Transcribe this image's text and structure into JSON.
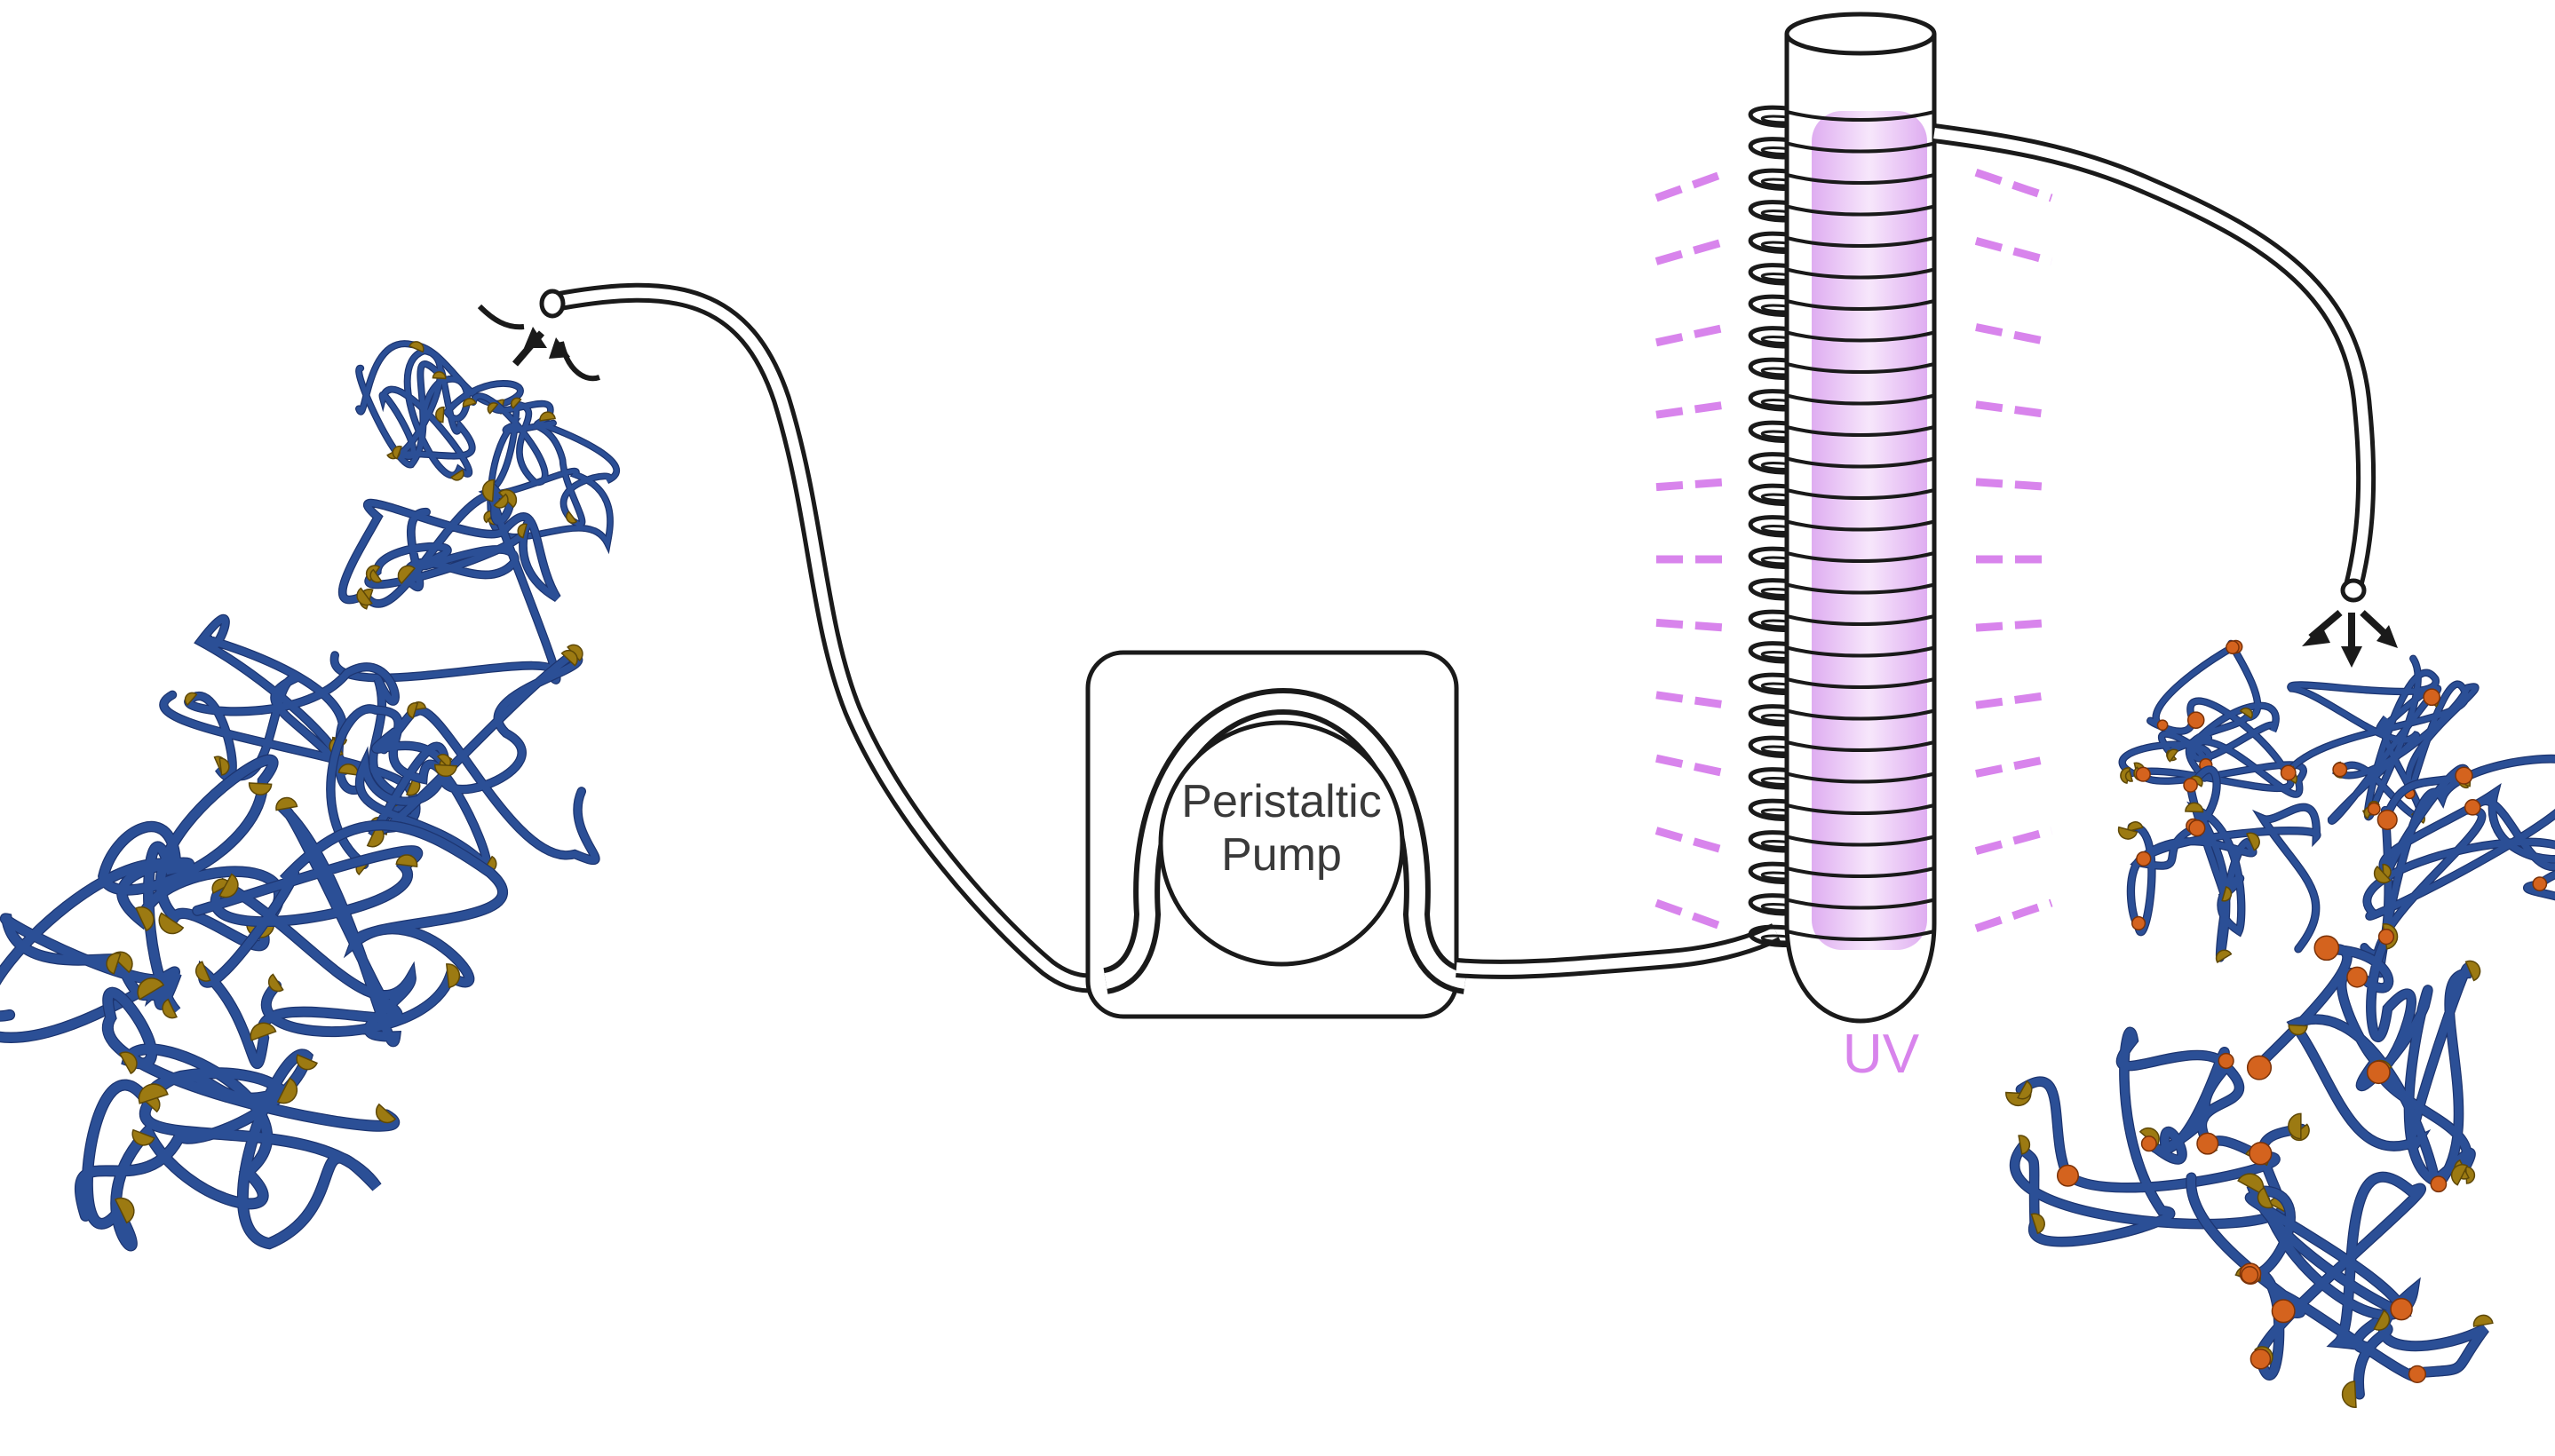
{
  "pump": {
    "label_line1": "Peristaltic",
    "label_line2": "Pump"
  },
  "lamp": {
    "label": "UV"
  },
  "colors": {
    "uv_violet": "#d884ec",
    "uv_glow": "#e8b4f4",
    "polymer_blue": "#2b4f96",
    "pendant_gold": "#9c7a12",
    "bound_orange": "#d4631e",
    "line": "#1a1a1a"
  },
  "icons": {
    "tube_inlet": "suction-inlet-icon",
    "tube_outlet": "outflow-arrows-icon"
  }
}
